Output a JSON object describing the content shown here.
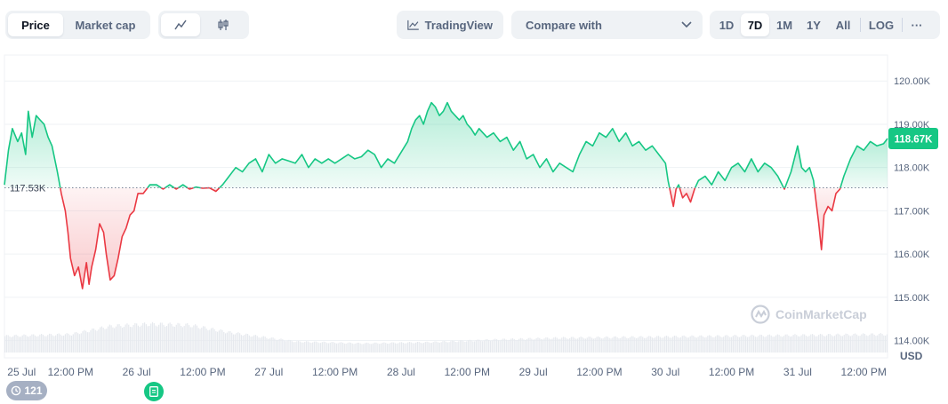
{
  "toolbar": {
    "price_label": "Price",
    "market_cap_label": "Market cap",
    "tradingview_label": "TradingView",
    "compare_label": "Compare with",
    "ranges": [
      "1D",
      "7D",
      "1M",
      "1Y",
      "All"
    ],
    "active_range": "7D",
    "log_label": "LOG",
    "more_label": "···"
  },
  "badges": {
    "history_count": "121"
  },
  "watermark": "CoinMarketCap",
  "colors": {
    "up": "#16c784",
    "down": "#ea3943",
    "grid": "#eff2f5",
    "text": "#58667e"
  },
  "chart_data": {
    "type": "area",
    "title": "",
    "xlabel": "",
    "ylabel": "USD",
    "ylim": [
      113600,
      120600
    ],
    "yticks": [
      {
        "value": 120000,
        "label": "120.00K"
      },
      {
        "value": 119000,
        "label": "119.00K"
      },
      {
        "value": 118000,
        "label": "118.00K"
      },
      {
        "value": 117000,
        "label": "117.00K"
      },
      {
        "value": 116000,
        "label": "116.00K"
      },
      {
        "value": 115000,
        "label": "115.00K"
      },
      {
        "value": 114000,
        "label": "114.00K"
      }
    ],
    "xticks": [
      {
        "value": 0.13,
        "label": "25 Jul"
      },
      {
        "value": 0.5,
        "label": "12:00 PM"
      },
      {
        "value": 1.0,
        "label": "26 Jul"
      },
      {
        "value": 1.5,
        "label": "12:00 PM"
      },
      {
        "value": 2.0,
        "label": "27 Jul"
      },
      {
        "value": 2.5,
        "label": "12:00 PM"
      },
      {
        "value": 3.0,
        "label": "28 Jul"
      },
      {
        "value": 3.5,
        "label": "12:00 PM"
      },
      {
        "value": 4.0,
        "label": "29 Jul"
      },
      {
        "value": 4.5,
        "label": "12:00 PM"
      },
      {
        "value": 5.0,
        "label": "30 Jul"
      },
      {
        "value": 5.5,
        "label": "12:00 PM"
      },
      {
        "value": 6.0,
        "label": "31 Jul"
      },
      {
        "value": 6.5,
        "label": "12:00 PM"
      }
    ],
    "xlim": [
      0,
      6.68
    ],
    "baseline": {
      "value": 117530,
      "label": "117.53K"
    },
    "current": {
      "value": 118670,
      "label": "118.67K"
    },
    "series": [
      {
        "values": [
          [
            0.0,
            117600
          ],
          [
            0.03,
            118400
          ],
          [
            0.06,
            118900
          ],
          [
            0.1,
            118600
          ],
          [
            0.13,
            118800
          ],
          [
            0.16,
            118300
          ],
          [
            0.18,
            119300
          ],
          [
            0.21,
            118700
          ],
          [
            0.24,
            119200
          ],
          [
            0.27,
            119100
          ],
          [
            0.3,
            119000
          ],
          [
            0.33,
            118700
          ],
          [
            0.36,
            118500
          ],
          [
            0.4,
            117900
          ],
          [
            0.43,
            117400
          ],
          [
            0.46,
            117000
          ],
          [
            0.48,
            116500
          ],
          [
            0.5,
            115900
          ],
          [
            0.53,
            115500
          ],
          [
            0.56,
            115700
          ],
          [
            0.59,
            115200
          ],
          [
            0.62,
            115800
          ],
          [
            0.64,
            115300
          ],
          [
            0.66,
            115700
          ],
          [
            0.69,
            116100
          ],
          [
            0.72,
            116700
          ],
          [
            0.75,
            116500
          ],
          [
            0.77,
            116000
          ],
          [
            0.8,
            115400
          ],
          [
            0.83,
            115500
          ],
          [
            0.86,
            115900
          ],
          [
            0.89,
            116400
          ],
          [
            0.92,
            116600
          ],
          [
            0.95,
            116900
          ],
          [
            0.98,
            117000
          ],
          [
            1.01,
            117400
          ],
          [
            1.05,
            117400
          ],
          [
            1.1,
            117600
          ],
          [
            1.15,
            117600
          ],
          [
            1.2,
            117500
          ],
          [
            1.25,
            117600
          ],
          [
            1.3,
            117500
          ],
          [
            1.35,
            117600
          ],
          [
            1.4,
            117500
          ],
          [
            1.45,
            117550
          ],
          [
            1.5,
            117520
          ],
          [
            1.55,
            117530
          ],
          [
            1.6,
            117450
          ],
          [
            1.65,
            117600
          ],
          [
            1.7,
            117800
          ],
          [
            1.75,
            118000
          ],
          [
            1.8,
            117900
          ],
          [
            1.85,
            118100
          ],
          [
            1.9,
            118200
          ],
          [
            1.95,
            117900
          ],
          [
            2.0,
            118300
          ],
          [
            2.05,
            118100
          ],
          [
            2.1,
            118200
          ],
          [
            2.15,
            118150
          ],
          [
            2.2,
            118100
          ],
          [
            2.25,
            118300
          ],
          [
            2.3,
            118000
          ],
          [
            2.35,
            118200
          ],
          [
            2.4,
            118100
          ],
          [
            2.45,
            118200
          ],
          [
            2.5,
            118100
          ],
          [
            2.55,
            118200
          ],
          [
            2.6,
            118300
          ],
          [
            2.65,
            118200
          ],
          [
            2.7,
            118250
          ],
          [
            2.75,
            118400
          ],
          [
            2.8,
            118300
          ],
          [
            2.85,
            118000
          ],
          [
            2.9,
            118200
          ],
          [
            2.95,
            118100
          ],
          [
            3.0,
            118350
          ],
          [
            3.05,
            118600
          ],
          [
            3.08,
            118900
          ],
          [
            3.11,
            119100
          ],
          [
            3.14,
            119200
          ],
          [
            3.17,
            119000
          ],
          [
            3.2,
            119300
          ],
          [
            3.23,
            119500
          ],
          [
            3.26,
            119400
          ],
          [
            3.29,
            119200
          ],
          [
            3.32,
            119300
          ],
          [
            3.35,
            119500
          ],
          [
            3.38,
            119300
          ],
          [
            3.41,
            119200
          ],
          [
            3.44,
            119100
          ],
          [
            3.47,
            119200
          ],
          [
            3.5,
            119000
          ],
          [
            3.53,
            118900
          ],
          [
            3.56,
            118750
          ],
          [
            3.59,
            118900
          ],
          [
            3.62,
            118800
          ],
          [
            3.65,
            118700
          ],
          [
            3.7,
            118800
          ],
          [
            3.75,
            118600
          ],
          [
            3.8,
            118700
          ],
          [
            3.85,
            118400
          ],
          [
            3.9,
            118600
          ],
          [
            3.95,
            118200
          ],
          [
            4.0,
            118300
          ],
          [
            4.05,
            118000
          ],
          [
            4.1,
            118200
          ],
          [
            4.15,
            117900
          ],
          [
            4.2,
            118100
          ],
          [
            4.25,
            118000
          ],
          [
            4.3,
            117900
          ],
          [
            4.35,
            118300
          ],
          [
            4.4,
            118600
          ],
          [
            4.45,
            118500
          ],
          [
            4.5,
            118800
          ],
          [
            4.55,
            118700
          ],
          [
            4.6,
            118900
          ],
          [
            4.65,
            118600
          ],
          [
            4.7,
            118800
          ],
          [
            4.75,
            118500
          ],
          [
            4.8,
            118600
          ],
          [
            4.85,
            118400
          ],
          [
            4.9,
            118500
          ],
          [
            4.95,
            118300
          ],
          [
            5.0,
            118100
          ],
          [
            5.02,
            117700
          ],
          [
            5.04,
            117400
          ],
          [
            5.06,
            117100
          ],
          [
            5.08,
            117500
          ],
          [
            5.1,
            117600
          ],
          [
            5.13,
            117300
          ],
          [
            5.16,
            117400
          ],
          [
            5.19,
            117200
          ],
          [
            5.22,
            117500
          ],
          [
            5.25,
            117700
          ],
          [
            5.3,
            117800
          ],
          [
            5.35,
            117600
          ],
          [
            5.4,
            117900
          ],
          [
            5.45,
            117700
          ],
          [
            5.5,
            118000
          ],
          [
            5.55,
            118100
          ],
          [
            5.6,
            117900
          ],
          [
            5.65,
            118200
          ],
          [
            5.7,
            117900
          ],
          [
            5.75,
            118100
          ],
          [
            5.8,
            118000
          ],
          [
            5.85,
            117800
          ],
          [
            5.9,
            117500
          ],
          [
            5.95,
            117900
          ],
          [
            6.0,
            118500
          ],
          [
            6.03,
            118000
          ],
          [
            6.06,
            117900
          ],
          [
            6.09,
            118000
          ],
          [
            6.12,
            117700
          ],
          [
            6.14,
            117200
          ],
          [
            6.16,
            116700
          ],
          [
            6.18,
            116100
          ],
          [
            6.2,
            116900
          ],
          [
            6.23,
            117100
          ],
          [
            6.26,
            117000
          ],
          [
            6.29,
            117400
          ],
          [
            6.32,
            117500
          ],
          [
            6.35,
            117800
          ],
          [
            6.4,
            118200
          ],
          [
            6.45,
            118500
          ],
          [
            6.5,
            118400
          ],
          [
            6.55,
            118600
          ],
          [
            6.6,
            118500
          ],
          [
            6.65,
            118550
          ],
          [
            6.68,
            118670
          ]
        ]
      }
    ],
    "volume": [
      [
        0.0,
        0.45
      ],
      [
        0.5,
        0.5
      ],
      [
        0.8,
        0.72
      ],
      [
        1.1,
        0.78
      ],
      [
        1.4,
        0.75
      ],
      [
        1.7,
        0.55
      ],
      [
        2.2,
        0.3
      ],
      [
        2.7,
        0.25
      ],
      [
        3.2,
        0.28
      ],
      [
        3.7,
        0.35
      ],
      [
        4.2,
        0.4
      ],
      [
        4.7,
        0.42
      ],
      [
        5.2,
        0.44
      ],
      [
        5.7,
        0.46
      ],
      [
        6.2,
        0.48
      ],
      [
        6.68,
        0.5
      ]
    ]
  }
}
